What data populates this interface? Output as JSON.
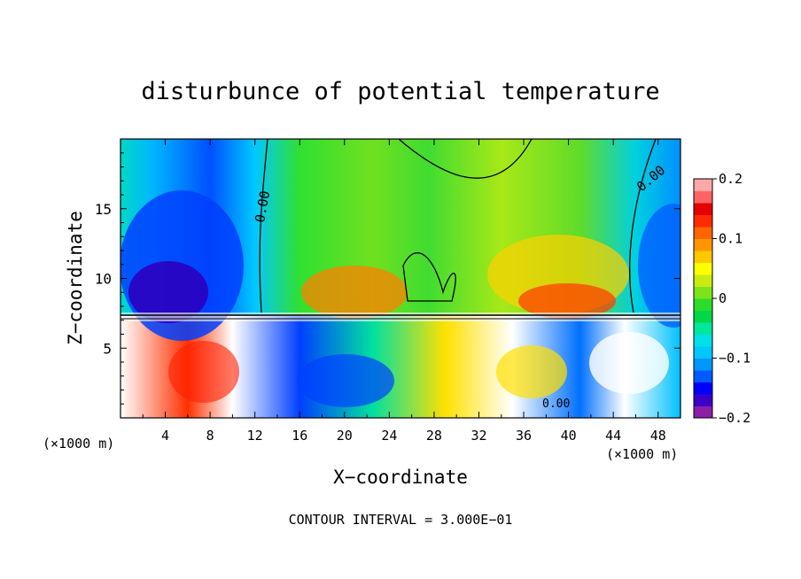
{
  "chart_data": {
    "type": "heatmap",
    "title": "disturbunce of potential temperature",
    "xlabel": "X−coordinate",
    "ylabel": "Z−coordinate",
    "x_unit_label": "(×1000 m)",
    "y_unit_label": "(×1000 m)",
    "xlim": [
      0,
      50
    ],
    "ylim": [
      0,
      20
    ],
    "x_ticks": [
      4,
      8,
      12,
      16,
      20,
      24,
      28,
      32,
      36,
      40,
      44,
      48
    ],
    "x_tick_labels": [
      "4",
      "8",
      "12",
      "16",
      "20",
      "24",
      "28",
      "32",
      "36",
      "40",
      "44",
      "48"
    ],
    "y_ticks": [
      5,
      10,
      15
    ],
    "y_tick_labels": [
      "5",
      "10",
      "15"
    ],
    "colorbar": {
      "range": [
        -0.2,
        0.2
      ],
      "ticks": [
        0.2,
        0.1,
        0,
        -0.1,
        -0.2
      ],
      "tick_labels": [
        "0.2",
        "0.1",
        "0",
        "−0.1",
        "−0.2"
      ],
      "colors": [
        "#8b1fa8",
        "#3b00c8",
        "#0000ff",
        "#005aff",
        "#0096ff",
        "#00c8ff",
        "#00e0e8",
        "#00e89c",
        "#00d84a",
        "#2cdc28",
        "#7ce41c",
        "#c8ec10",
        "#ffff00",
        "#ffc800",
        "#ff9600",
        "#ff6400",
        "#ff2a00",
        "#e60000",
        "#ff6464",
        "#ffa8a8"
      ]
    },
    "contour_labels": [
      "0.00",
      "0.00",
      "0.00"
    ],
    "features": [
      {
        "kind": "cold-anomaly",
        "x_center": 5,
        "z_center": 12,
        "value": -0.18
      },
      {
        "kind": "cold-anomaly",
        "x_center": 48,
        "z_center": 12,
        "value": -0.14
      },
      {
        "kind": "warm-anomaly",
        "x_center": 21,
        "z_center": 9,
        "value": 0.12
      },
      {
        "kind": "warm-anomaly",
        "x_center": 38,
        "z_center": 10,
        "value": 0.12
      }
    ],
    "footer": "CONTOUR INTERVAL = 3.000E−01"
  }
}
